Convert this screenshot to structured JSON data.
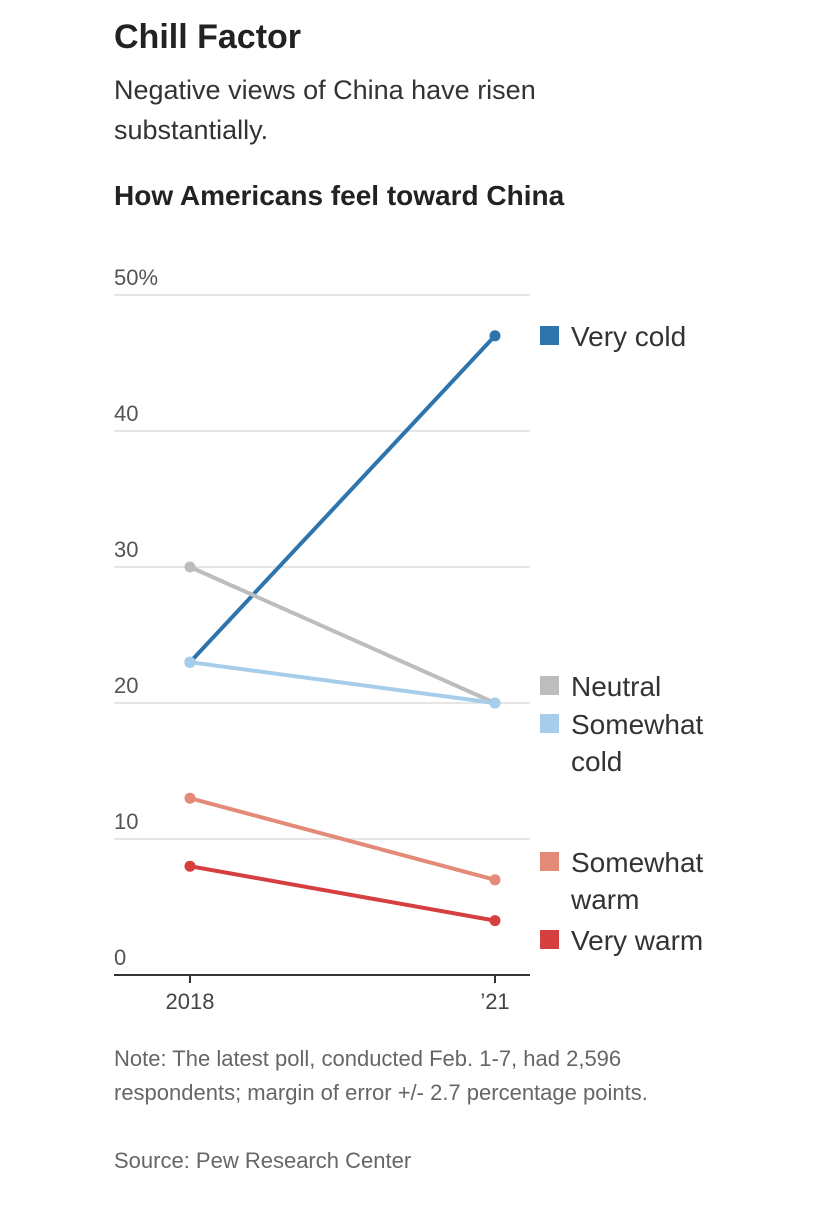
{
  "header": {
    "title": "Chill Factor",
    "subtitle": "Negative views of China have risen substantially."
  },
  "chart_data": {
    "type": "line",
    "title": "How Americans feel toward China",
    "x": [
      "2018",
      "’21"
    ],
    "y_unit": "%",
    "yticks": [
      0,
      10,
      20,
      30,
      40,
      50
    ],
    "ylim": [
      0,
      50
    ],
    "grid": true,
    "legend_placement": "right, next to line ends",
    "series": [
      {
        "name": "Very cold",
        "values": [
          23,
          47
        ],
        "color": "#2e75ad"
      },
      {
        "name": "Neutral",
        "values": [
          30,
          20
        ],
        "color": "#bdbdbd"
      },
      {
        "name": "Somewhat cold",
        "values": [
          23,
          20
        ],
        "color": "#a6cdea"
      },
      {
        "name": "Somewhat warm",
        "values": [
          13,
          7
        ],
        "color": "#e48a78"
      },
      {
        "name": "Very warm",
        "values": [
          8,
          4
        ],
        "color": "#d63f40"
      }
    ]
  },
  "footer": {
    "note": "Note: The latest poll, conducted Feb. 1-7, had 2,596 respondents; margin of error +/- 2.7 percentage points.",
    "source": "Source: Pew Research Center"
  }
}
